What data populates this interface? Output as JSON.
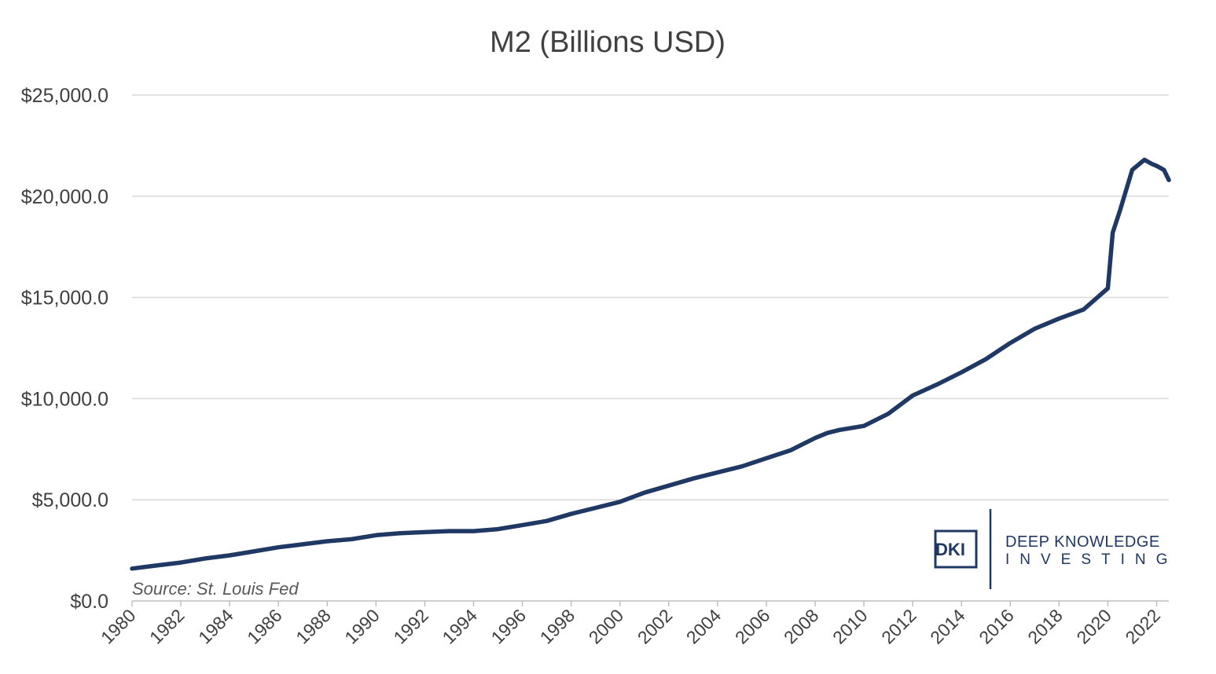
{
  "chart_data": {
    "type": "line",
    "title": "M2 (Billions USD)",
    "xlabel": "",
    "ylabel": "",
    "ylim": [
      0,
      25000
    ],
    "yticks": [
      "$0.0",
      "$5,000.0",
      "$10,000.0",
      "$15,000.0",
      "$20,000.0",
      "$25,000.0"
    ],
    "ytick_values": [
      0,
      5000,
      10000,
      15000,
      20000,
      25000
    ],
    "xlim": [
      1980,
      2022.5
    ],
    "xticks": [
      "1980",
      "1982",
      "1984",
      "1986",
      "1988",
      "1990",
      "1992",
      "1994",
      "1996",
      "1998",
      "2000",
      "2002",
      "2004",
      "2006",
      "2008",
      "2010",
      "2012",
      "2014",
      "2016",
      "2018",
      "2020",
      "2022"
    ],
    "xtick_values": [
      1980,
      1982,
      1984,
      1986,
      1988,
      1990,
      1992,
      1994,
      1996,
      1998,
      2000,
      2002,
      2004,
      2006,
      2008,
      2010,
      2012,
      2014,
      2016,
      2018,
      2020,
      2022
    ],
    "grid": true,
    "line_color": "#1f3864",
    "series": [
      {
        "x": [
          1980,
          1981,
          1982,
          1983,
          1984,
          1985,
          1986,
          1987,
          1988,
          1989,
          1990,
          1991,
          1992,
          1993,
          1994,
          1995,
          1996,
          1997,
          1998,
          1999,
          2000,
          2001,
          2002,
          2003,
          2004,
          2005,
          2006,
          2007,
          2008,
          2008.5,
          2009,
          2010,
          2011,
          2012,
          2013,
          2014,
          2015,
          2016,
          2017,
          2018,
          2019,
          2020.0,
          2020.2,
          2020.5,
          2021.0,
          2021.5,
          2021.8,
          2022.0,
          2022.3,
          2022.5
        ],
        "values": [
          1600,
          1750,
          1900,
          2100,
          2250,
          2450,
          2650,
          2800,
          2950,
          3050,
          3250,
          3350,
          3400,
          3450,
          3450,
          3550,
          3750,
          3950,
          4300,
          4600,
          4900,
          5350,
          5700,
          6050,
          6350,
          6650,
          7050,
          7450,
          8050,
          8300,
          8450,
          8650,
          9250,
          10150,
          10700,
          11300,
          11950,
          12750,
          13450,
          13950,
          14400,
          15450,
          18200,
          19300,
          21300,
          21800,
          21600,
          21500,
          21300,
          20800
        ]
      }
    ],
    "source_note": "Source: St. Louis Fed"
  },
  "logo": {
    "mark": "DKI",
    "line1": "DEEP KNOWLEDGE",
    "line2": "INVESTING",
    "color": "#1f3864"
  }
}
